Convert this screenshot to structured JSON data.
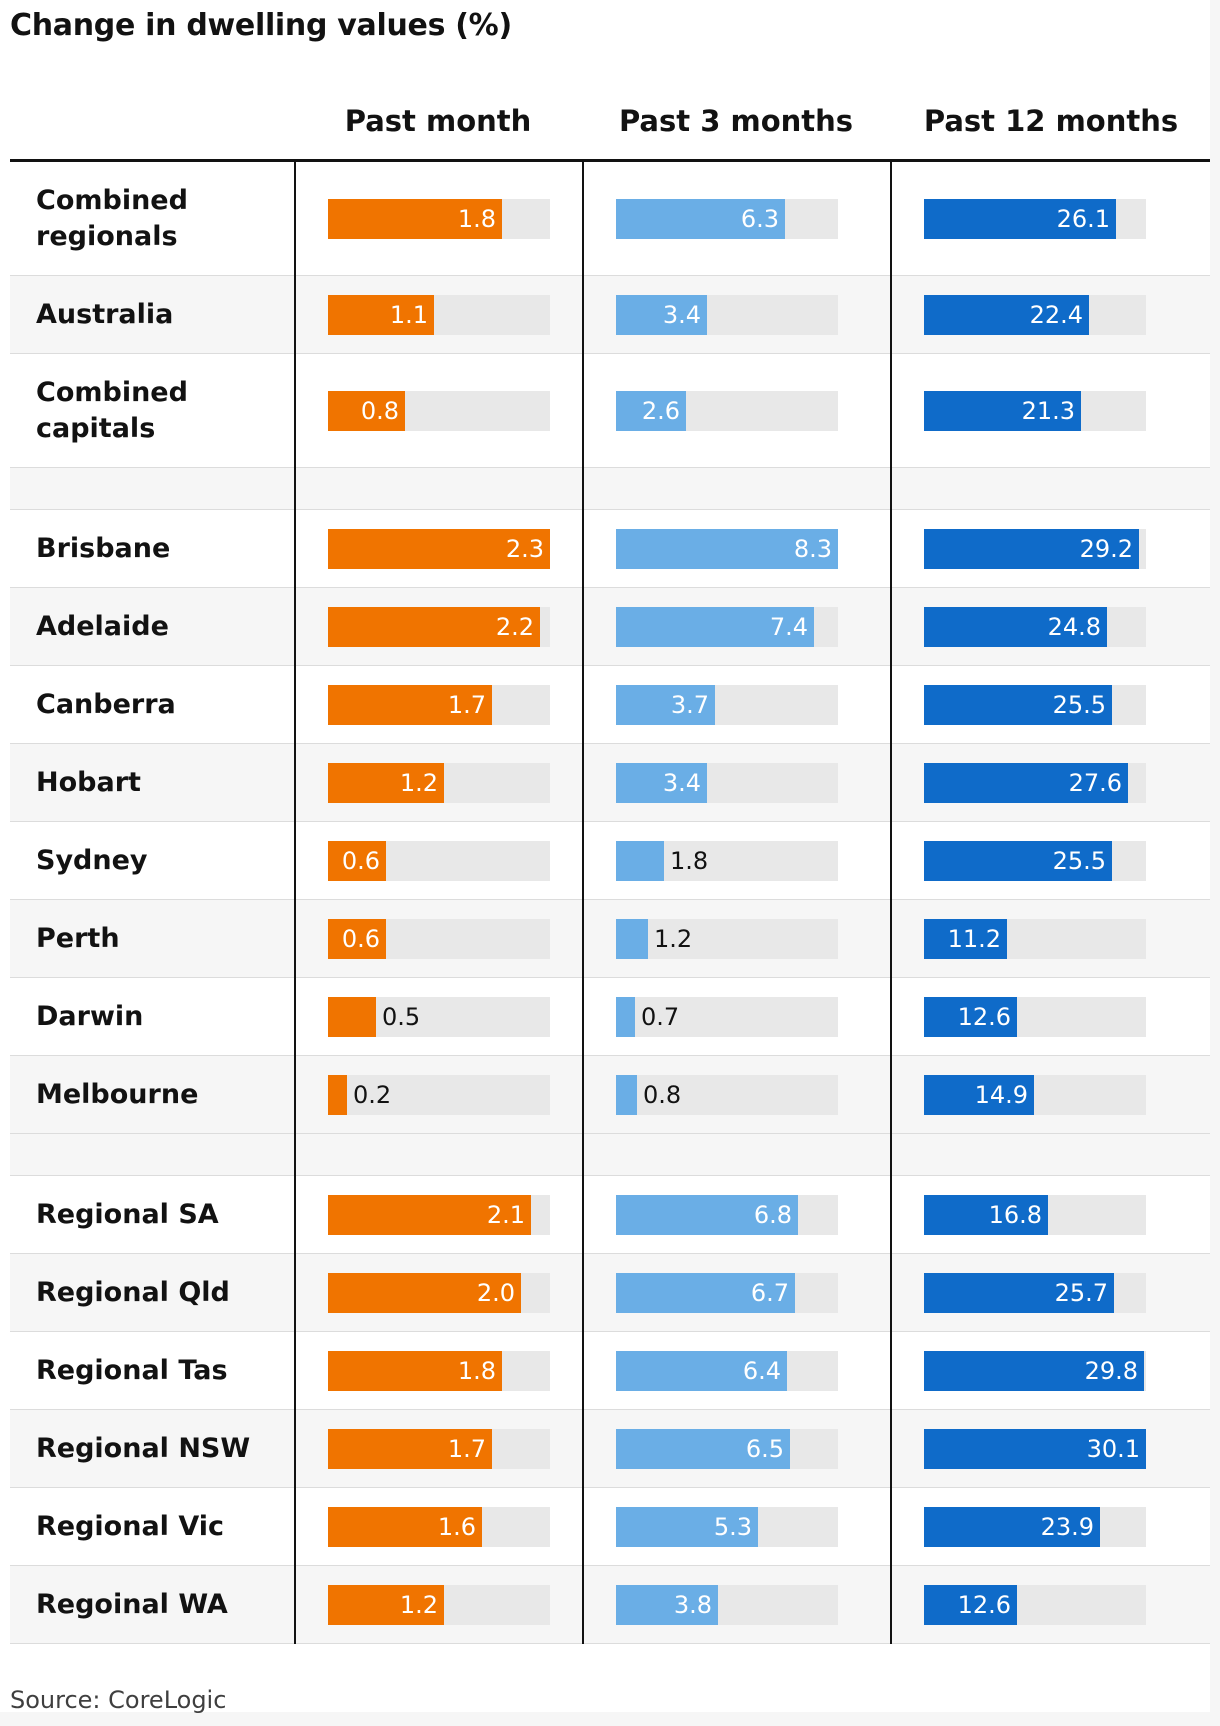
{
  "chart_data": {
    "type": "bar",
    "title": "Change in dwelling values (%)",
    "source": "Source: CoreLogic",
    "columns": [
      "Past month",
      "Past 3 months",
      "Past 12 months"
    ],
    "colors": [
      "#f07400",
      "#6aaee6",
      "#0f6bc9"
    ],
    "xlim": [
      [
        0,
        2.3
      ],
      [
        0,
        8.3
      ],
      [
        0,
        30.1
      ]
    ],
    "groups": [
      {
        "rows": [
          {
            "label": "Combined regionals",
            "values": [
              1.8,
              6.3,
              26.1
            ]
          },
          {
            "label": "Australia",
            "values": [
              1.1,
              3.4,
              22.4
            ]
          },
          {
            "label": "Combined capitals",
            "values": [
              0.8,
              2.6,
              21.3
            ]
          }
        ]
      },
      {
        "rows": [
          {
            "label": "Brisbane",
            "values": [
              2.3,
              8.3,
              29.2
            ]
          },
          {
            "label": "Adelaide",
            "values": [
              2.2,
              7.4,
              24.8
            ]
          },
          {
            "label": "Canberra",
            "values": [
              1.7,
              3.7,
              25.5
            ]
          },
          {
            "label": "Hobart",
            "values": [
              1.2,
              3.4,
              27.6
            ]
          },
          {
            "label": "Sydney",
            "values": [
              0.6,
              1.8,
              25.5
            ]
          },
          {
            "label": "Perth",
            "values": [
              0.6,
              1.2,
              11.2
            ]
          },
          {
            "label": "Darwin",
            "values": [
              0.5,
              0.7,
              12.6
            ]
          },
          {
            "label": "Melbourne",
            "values": [
              0.2,
              0.8,
              14.9
            ]
          }
        ]
      },
      {
        "rows": [
          {
            "label": "Regional SA",
            "values": [
              2.1,
              6.8,
              16.8
            ]
          },
          {
            "label": "Regional Qld",
            "values": [
              2.0,
              6.7,
              25.7
            ]
          },
          {
            "label": "Regional Tas",
            "values": [
              1.8,
              6.4,
              29.8
            ]
          },
          {
            "label": "Regional NSW",
            "values": [
              1.7,
              6.5,
              30.1
            ]
          },
          {
            "label": "Regional Vic",
            "values": [
              1.6,
              5.3,
              23.9
            ]
          },
          {
            "label": "Regoinal WA",
            "values": [
              1.2,
              3.8,
              12.6
            ]
          }
        ]
      }
    ]
  }
}
